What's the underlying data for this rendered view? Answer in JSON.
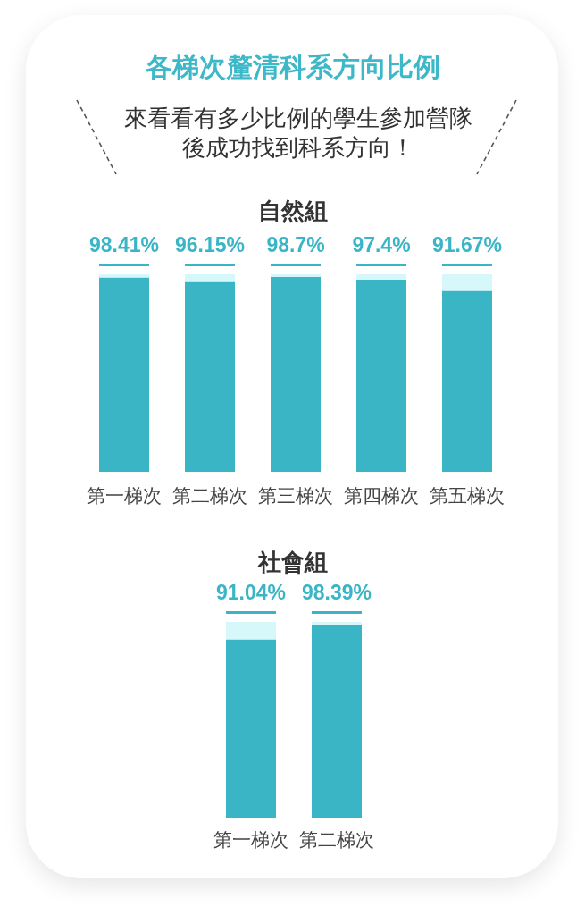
{
  "chart_data": [
    {
      "type": "other",
      "title": "各梯次釐清科系方向比例",
      "subtitle": "來看看有多少比例的學生參加營隊後成功找到科系方向！"
    },
    {
      "type": "bar",
      "title": "自然組",
      "categories": [
        "第一梯次",
        "第二梯次",
        "第三梯次",
        "第四梯次",
        "第五梯次"
      ],
      "stacked": true,
      "series": [
        {
          "color": "#39b5c6",
          "values": [
            98.41,
            96.15,
            98.7,
            97.4,
            91.67
          ],
          "value_labels": [
            "98.41%",
            "96.15%",
            "98.7%",
            "97.4%",
            "91.67%"
          ]
        },
        {
          "color": "#d6f8fb",
          "values": [
            1.59,
            3.85,
            1.3,
            2.6,
            8.33
          ]
        }
      ],
      "ylim": [
        0,
        100
      ],
      "tick_labels": "x"
    },
    {
      "type": "bar",
      "title": "社會組",
      "categories": [
        "第一梯次",
        "第二梯次"
      ],
      "stacked": true,
      "series": [
        {
          "color": "#39b5c6",
          "values": [
            91.04,
            98.39
          ],
          "value_labels": [
            "91.04%",
            "98.39%"
          ]
        },
        {
          "color": "#d6f8fb",
          "values": [
            8.96,
            1.61
          ]
        }
      ],
      "ylim": [
        0,
        100
      ],
      "tick_labels": "x"
    }
  ]
}
